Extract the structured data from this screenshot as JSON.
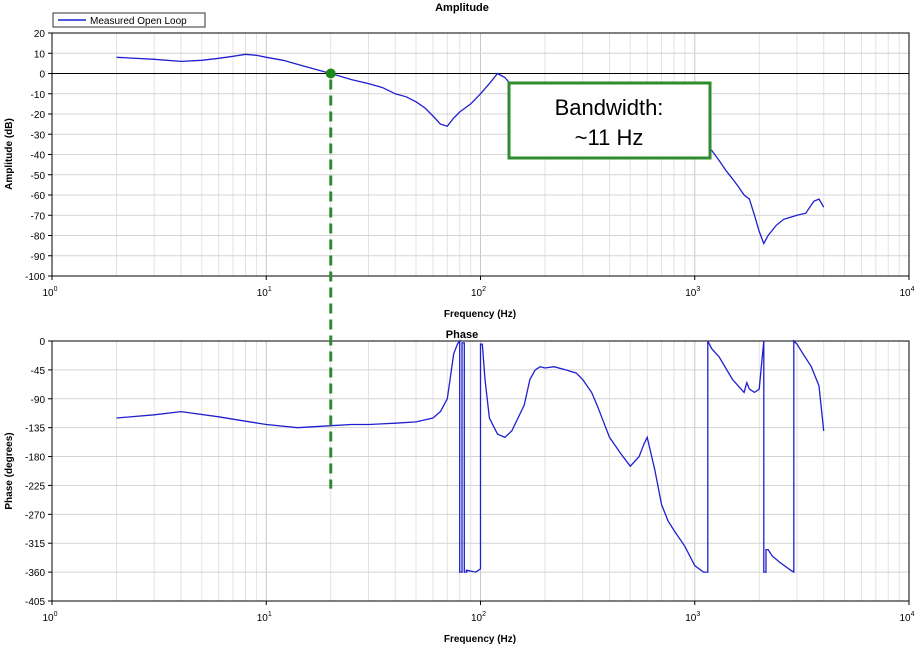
{
  "chart_data": [
    {
      "type": "line",
      "title": "Amplitude",
      "xlabel": "Frequency (Hz)",
      "ylabel": "Amplitude (dB)",
      "xscale": "log",
      "xlim": [
        1,
        10000
      ],
      "ylim": [
        -100,
        20
      ],
      "x_tick_labels": [
        {
          "base": "10",
          "exp": "0"
        },
        {
          "base": "10",
          "exp": "1"
        },
        {
          "base": "10",
          "exp": "2"
        },
        {
          "base": "10",
          "exp": "3"
        },
        {
          "base": "10",
          "exp": "4"
        }
      ],
      "y_tick_labels": [
        "20",
        "10",
        "0",
        "-10",
        "-20",
        "-30",
        "-40",
        "-50",
        "-60",
        "-70",
        "-80",
        "-90",
        "-100"
      ],
      "grid": true,
      "legend": {
        "placement": "top-left",
        "entries": [
          "Measured Open Loop"
        ]
      },
      "series": [
        {
          "name": "Measured Open Loop",
          "color": "#1f1fd0",
          "x": [
            2,
            3,
            4,
            5,
            6,
            7,
            8,
            9,
            10,
            12,
            14,
            17,
            20,
            25,
            30,
            35,
            40,
            45,
            50,
            55,
            60,
            65,
            70,
            75,
            80,
            90,
            100,
            110,
            120,
            130,
            140,
            160,
            180,
            200,
            250,
            300,
            350,
            400,
            500,
            600,
            700,
            800,
            900,
            1000,
            1100,
            1200,
            1300,
            1400,
            1500,
            1600,
            1700,
            1800,
            1900,
            2000,
            2100,
            2200,
            2400,
            2600,
            2800,
            3000,
            3300,
            3600,
            3800,
            4000
          ],
          "y": [
            8,
            7,
            6,
            6.5,
            7.5,
            8.5,
            9.5,
            9,
            8,
            6.5,
            4.5,
            2,
            0,
            -3,
            -5,
            -7,
            -10,
            -11.5,
            -14,
            -17,
            -21,
            -25,
            -26,
            -22,
            -19,
            -15,
            -10,
            -5,
            0,
            -2,
            -6,
            -13,
            -19,
            -24,
            -29,
            -33,
            -34,
            -34,
            -34,
            -31,
            -30,
            -31,
            -33,
            -33,
            -34,
            -38,
            -43,
            -48,
            -52,
            -56,
            -60,
            -62,
            -70,
            -78,
            -84,
            -80,
            -75,
            -72,
            -71,
            -70,
            -69,
            -63,
            -62,
            -66
          ]
        }
      ],
      "annotations": {
        "marker": {
          "x": 20,
          "y": 0
        },
        "callout_lines": [
          "Bandwidth:",
          "~11 Hz"
        ],
        "callout_color": "#2e8b2e"
      }
    },
    {
      "type": "line",
      "title": "Phase",
      "xlabel": "Frequency (Hz)",
      "ylabel": "Phase (degrees)",
      "xscale": "log",
      "xlim": [
        1,
        10000
      ],
      "ylim": [
        -405,
        0
      ],
      "x_tick_labels": [
        {
          "base": "10",
          "exp": "0"
        },
        {
          "base": "10",
          "exp": "1"
        },
        {
          "base": "10",
          "exp": "2"
        },
        {
          "base": "10",
          "exp": "3"
        },
        {
          "base": "10",
          "exp": "4"
        }
      ],
      "y_tick_labels": [
        "0",
        "-45",
        "-90",
        "-135",
        "-180",
        "-225",
        "-270",
        "-315",
        "-360",
        "-405"
      ],
      "grid": true,
      "series": [
        {
          "name": "Measured Open Loop",
          "color": "#1f1fd0",
          "x": [
            2,
            3,
            4,
            6,
            8,
            10,
            14,
            20,
            25,
            30,
            40,
            50,
            60,
            65,
            70,
            75,
            78,
            80,
            80,
            82,
            82,
            84,
            84,
            86,
            86,
            95,
            100,
            100,
            102,
            105,
            110,
            120,
            130,
            140,
            160,
            170,
            180,
            190,
            200,
            220,
            250,
            280,
            300,
            330,
            350,
            400,
            450,
            500,
            550,
            580,
            600,
            650,
            700,
            750,
            800,
            900,
            1000,
            1100,
            1150,
            1150,
            1200,
            1300,
            1500,
            1700,
            1750,
            1800,
            1900,
            2000,
            2100,
            2100,
            2150,
            2150,
            2200,
            2300,
            2500,
            2800,
            2900,
            2900,
            3000,
            3200,
            3500,
            3800,
            4000
          ],
          "y": [
            -120,
            -115,
            -110,
            -118,
            -125,
            -130,
            -135,
            -132,
            -130,
            -130,
            -128,
            -126,
            -120,
            -110,
            -90,
            -20,
            -5,
            0,
            -360,
            -360,
            -3,
            -3,
            -360,
            -360,
            -357,
            -360,
            -355,
            -5,
            -5,
            -60,
            -120,
            -145,
            -150,
            -140,
            -100,
            -60,
            -45,
            -40,
            -42,
            -40,
            -45,
            -50,
            -60,
            -80,
            -100,
            -150,
            -175,
            -195,
            -180,
            -160,
            -150,
            -200,
            -255,
            -280,
            -295,
            -320,
            -350,
            -360,
            -360,
            0,
            -12,
            -25,
            -60,
            -80,
            -65,
            -75,
            -80,
            -75,
            0,
            -360,
            -360,
            -325,
            -325,
            -335,
            -345,
            -357,
            -360,
            0,
            -5,
            -20,
            -40,
            -70,
            -140
          ]
        }
      ],
      "annotations": {
        "dashed_marker_x": 20
      }
    }
  ]
}
